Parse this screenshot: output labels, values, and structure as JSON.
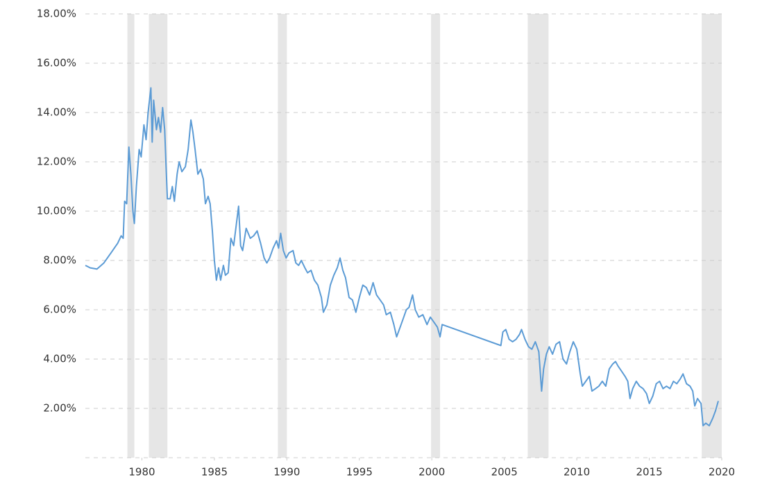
{
  "chart_data": {
    "type": "line",
    "xlim": [
      1976.1,
      2020
    ],
    "xticks": [
      1980,
      1985,
      1990,
      1995,
      2000,
      2005,
      2010,
      2015,
      2020
    ],
    "ylim": [
      0,
      18
    ],
    "yticks": [
      {
        "value": 2,
        "label": "2.00%"
      },
      {
        "value": 4,
        "label": "4.00%"
      },
      {
        "value": 6,
        "label": "6.00%"
      },
      {
        "value": 8,
        "label": "8.00%"
      },
      {
        "value": 10,
        "label": "10.00%"
      },
      {
        "value": 12,
        "label": "12.00%"
      },
      {
        "value": 14,
        "label": "14.00%"
      },
      {
        "value": 16,
        "label": "16.00%"
      },
      {
        "value": 18,
        "label": "18.00%"
      }
    ],
    "grid": true,
    "shaded_periods": [
      [
        1979.0,
        1979.48
      ],
      [
        1980.48,
        1981.76
      ],
      [
        1989.38,
        1990.0
      ],
      [
        1999.95,
        2000.57
      ],
      [
        2006.62,
        2008.05
      ],
      [
        2018.62,
        2020
      ]
    ],
    "shade_color": "#e6e6e6",
    "series": [
      {
        "color": "#5b9bd5",
        "x": [
          1976.1,
          1976.43,
          1976.9,
          1977.38,
          1977.86,
          1978.33,
          1978.57,
          1978.71,
          1978.81,
          1978.95,
          1979.1,
          1979.24,
          1979.38,
          1979.48,
          1979.62,
          1979.81,
          1979.95,
          1980.14,
          1980.29,
          1980.43,
          1980.62,
          1980.71,
          1980.81,
          1981.0,
          1981.14,
          1981.29,
          1981.43,
          1981.57,
          1981.67,
          1981.76,
          1981.95,
          1982.1,
          1982.24,
          1982.43,
          1982.57,
          1982.76,
          1983.0,
          1983.19,
          1983.38,
          1983.52,
          1983.67,
          1983.86,
          1984.05,
          1984.24,
          1984.38,
          1984.57,
          1984.71,
          1984.86,
          1985.0,
          1985.14,
          1985.29,
          1985.43,
          1985.62,
          1985.76,
          1985.95,
          1986.14,
          1986.33,
          1986.52,
          1986.67,
          1986.81,
          1986.95,
          1987.19,
          1987.48,
          1987.71,
          1987.95,
          1988.19,
          1988.43,
          1988.62,
          1988.81,
          1989.05,
          1989.29,
          1989.43,
          1989.57,
          1989.76,
          1989.95,
          1990.14,
          1990.43,
          1990.62,
          1990.81,
          1991.0,
          1991.24,
          1991.43,
          1991.67,
          1991.9,
          1992.14,
          1992.38,
          1992.52,
          1992.76,
          1993.0,
          1993.24,
          1993.48,
          1993.67,
          1993.86,
          1994.05,
          1994.29,
          1994.52,
          1994.76,
          1995.0,
          1995.24,
          1995.48,
          1995.71,
          1995.95,
          1996.19,
          1996.43,
          1996.67,
          1996.86,
          1997.14,
          1997.38,
          1997.57,
          1997.76,
          1998.0,
          1998.24,
          1998.43,
          1998.67,
          1998.86,
          1999.1,
          1999.38,
          1999.67,
          1999.9,
          2000.14,
          2000.38,
          2000.57,
          2000.71,
          2004.76,
          2004.9,
          2005.1,
          2005.33,
          2005.57,
          2005.81,
          2006.05,
          2006.19,
          2006.43,
          2006.67,
          2006.9,
          2007.14,
          2007.38,
          2007.57,
          2007.71,
          2007.9,
          2008.1,
          2008.33,
          2008.57,
          2008.81,
          2009.05,
          2009.29,
          2009.52,
          2009.76,
          2010.0,
          2010.24,
          2010.38,
          2010.62,
          2010.86,
          2011.05,
          2011.29,
          2011.52,
          2011.76,
          2012.0,
          2012.24,
          2012.48,
          2012.67,
          2012.86,
          2013.1,
          2013.33,
          2013.52,
          2013.67,
          2013.86,
          2014.1,
          2014.33,
          2014.57,
          2014.81,
          2015.0,
          2015.24,
          2015.48,
          2015.71,
          2015.95,
          2016.19,
          2016.43,
          2016.67,
          2016.9,
          2017.14,
          2017.33,
          2017.57,
          2017.81,
          2018.0,
          2018.14,
          2018.33,
          2018.57,
          2018.71,
          2018.9,
          2019.14,
          2019.38,
          2019.57,
          2019.76
        ],
        "values": [
          7.8,
          7.7,
          7.65,
          7.9,
          8.3,
          8.7,
          9.0,
          8.9,
          10.4,
          10.3,
          12.6,
          11.5,
          10.0,
          9.5,
          11.0,
          12.5,
          12.2,
          13.5,
          12.9,
          14.0,
          15.0,
          12.8,
          14.5,
          13.3,
          13.8,
          13.2,
          14.2,
          13.3,
          11.8,
          10.5,
          10.5,
          11.0,
          10.4,
          11.5,
          12.0,
          11.6,
          11.8,
          12.5,
          13.7,
          13.2,
          12.5,
          11.5,
          11.7,
          11.3,
          10.3,
          10.6,
          10.3,
          9.2,
          8.0,
          7.2,
          7.7,
          7.2,
          7.8,
          7.4,
          7.5,
          8.9,
          8.6,
          9.5,
          10.2,
          8.6,
          8.4,
          9.3,
          8.9,
          9.0,
          9.2,
          8.7,
          8.1,
          7.9,
          8.1,
          8.5,
          8.8,
          8.5,
          9.1,
          8.4,
          8.1,
          8.3,
          8.4,
          7.9,
          7.8,
          8.0,
          7.7,
          7.5,
          7.6,
          7.2,
          7.0,
          6.5,
          5.9,
          6.2,
          7.0,
          7.4,
          7.7,
          8.1,
          7.6,
          7.3,
          6.5,
          6.4,
          5.9,
          6.5,
          7.0,
          6.9,
          6.6,
          7.1,
          6.6,
          6.4,
          6.2,
          5.8,
          5.9,
          5.4,
          4.9,
          5.2,
          5.6,
          6.0,
          6.1,
          6.6,
          6.0,
          5.7,
          5.8,
          5.4,
          5.7,
          5.5,
          5.3,
          4.9,
          5.4,
          4.55,
          5.1,
          5.2,
          4.8,
          4.7,
          4.8,
          5.0,
          5.2,
          4.8,
          4.5,
          4.4,
          4.7,
          4.3,
          2.7,
          3.6,
          4.2,
          4.5,
          4.2,
          4.6,
          4.7,
          4.0,
          3.8,
          4.3,
          4.7,
          4.4,
          3.4,
          2.9,
          3.1,
          3.3,
          2.7,
          2.8,
          2.9,
          3.1,
          2.9,
          3.6,
          3.8,
          3.9,
          3.7,
          3.5,
          3.3,
          3.1,
          2.4,
          2.8,
          3.1,
          2.9,
          2.8,
          2.6,
          2.2,
          2.5,
          3.0,
          3.1,
          2.8,
          2.9,
          2.8,
          3.1,
          3.0,
          3.2,
          3.4,
          3.0,
          2.9,
          2.7,
          2.1,
          2.4,
          2.2,
          1.3,
          1.4,
          1.3,
          1.6,
          1.9,
          2.3
        ]
      }
    ]
  }
}
